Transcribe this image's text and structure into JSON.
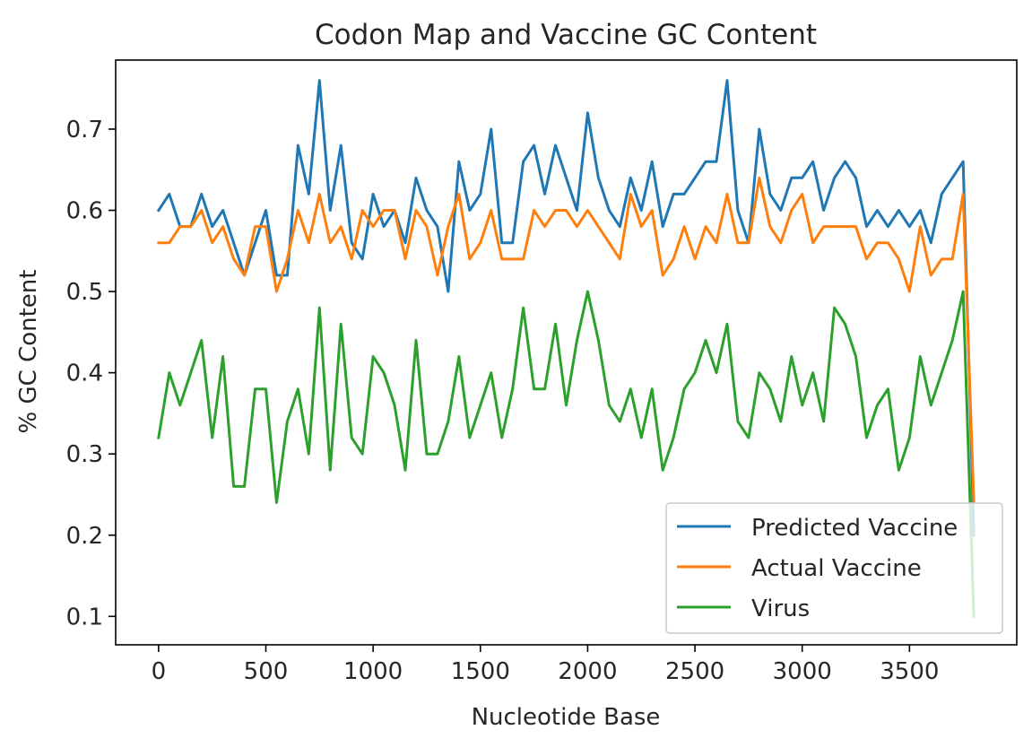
{
  "chart_data": {
    "type": "line",
    "title": "Codon Map and Vaccine GC Content",
    "xlabel": "Nucleotide Base",
    "ylabel": "% GC Content",
    "xlim": [
      -200,
      4000
    ],
    "ylim": [
      0.065,
      0.785
    ],
    "xticks": [
      0,
      500,
      1000,
      1500,
      2000,
      2500,
      3000,
      3500
    ],
    "xtick_labels": [
      "0",
      "500",
      "1000",
      "1500",
      "2000",
      "2500",
      "3000",
      "3500"
    ],
    "yticks": [
      0.1,
      0.2,
      0.3,
      0.4,
      0.5,
      0.6,
      0.7
    ],
    "ytick_labels": [
      "0.1",
      "0.2",
      "0.3",
      "0.4",
      "0.5",
      "0.6",
      "0.7"
    ],
    "grid": false,
    "legend_position": "lower-right",
    "x": [
      0,
      50,
      100,
      150,
      200,
      250,
      300,
      350,
      400,
      450,
      500,
      550,
      600,
      650,
      700,
      750,
      800,
      850,
      900,
      950,
      1000,
      1050,
      1100,
      1150,
      1200,
      1250,
      1300,
      1350,
      1400,
      1450,
      1500,
      1550,
      1600,
      1650,
      1700,
      1750,
      1800,
      1850,
      1900,
      1950,
      2000,
      2050,
      2100,
      2150,
      2200,
      2250,
      2300,
      2350,
      2400,
      2450,
      2500,
      2550,
      2600,
      2650,
      2700,
      2750,
      2800,
      2850,
      2900,
      2950,
      3000,
      3050,
      3100,
      3150,
      3200,
      3250,
      3300,
      3350,
      3400,
      3450,
      3500,
      3550,
      3600,
      3650,
      3700,
      3750,
      3800
    ],
    "series": [
      {
        "name": "Predicted Vaccine",
        "color": "#1f77b4",
        "values": [
          0.6,
          0.62,
          0.58,
          0.58,
          0.62,
          0.58,
          0.6,
          0.56,
          0.52,
          0.56,
          0.6,
          0.52,
          0.52,
          0.68,
          0.62,
          0.76,
          0.6,
          0.68,
          0.56,
          0.54,
          0.62,
          0.58,
          0.6,
          0.56,
          0.64,
          0.6,
          0.58,
          0.5,
          0.66,
          0.6,
          0.62,
          0.7,
          0.56,
          0.56,
          0.66,
          0.68,
          0.62,
          0.68,
          0.64,
          0.6,
          0.72,
          0.64,
          0.6,
          0.58,
          0.64,
          0.6,
          0.66,
          0.58,
          0.62,
          0.62,
          0.64,
          0.66,
          0.66,
          0.76,
          0.6,
          0.56,
          0.7,
          0.62,
          0.6,
          0.64,
          0.64,
          0.66,
          0.6,
          0.64,
          0.66,
          0.64,
          0.58,
          0.6,
          0.58,
          0.6,
          0.58,
          0.6,
          0.56,
          0.62,
          0.64,
          0.66,
          0.2
        ]
      },
      {
        "name": "Actual Vaccine",
        "color": "#ff7f0e",
        "values": [
          0.56,
          0.56,
          0.58,
          0.58,
          0.6,
          0.56,
          0.58,
          0.54,
          0.52,
          0.58,
          0.58,
          0.5,
          0.54,
          0.6,
          0.56,
          0.62,
          0.56,
          0.58,
          0.54,
          0.6,
          0.58,
          0.6,
          0.6,
          0.54,
          0.6,
          0.58,
          0.52,
          0.58,
          0.62,
          0.54,
          0.56,
          0.6,
          0.54,
          0.54,
          0.54,
          0.6,
          0.58,
          0.6,
          0.6,
          0.58,
          0.6,
          0.58,
          0.56,
          0.54,
          0.62,
          0.58,
          0.6,
          0.52,
          0.54,
          0.58,
          0.54,
          0.58,
          0.56,
          0.62,
          0.56,
          0.56,
          0.64,
          0.58,
          0.56,
          0.6,
          0.62,
          0.56,
          0.58,
          0.58,
          0.58,
          0.58,
          0.54,
          0.56,
          0.56,
          0.54,
          0.5,
          0.58,
          0.52,
          0.54,
          0.54,
          0.62,
          0.24
        ]
      },
      {
        "name": "Virus",
        "color": "#2ca02c",
        "values": [
          0.32,
          0.4,
          0.36,
          0.4,
          0.44,
          0.32,
          0.42,
          0.26,
          0.26,
          0.38,
          0.38,
          0.24,
          0.34,
          0.38,
          0.3,
          0.48,
          0.28,
          0.46,
          0.32,
          0.3,
          0.42,
          0.4,
          0.36,
          0.28,
          0.44,
          0.3,
          0.3,
          0.34,
          0.42,
          0.32,
          0.36,
          0.4,
          0.32,
          0.38,
          0.48,
          0.38,
          0.38,
          0.46,
          0.36,
          0.44,
          0.5,
          0.44,
          0.36,
          0.34,
          0.38,
          0.32,
          0.38,
          0.28,
          0.32,
          0.38,
          0.4,
          0.44,
          0.4,
          0.46,
          0.34,
          0.32,
          0.4,
          0.38,
          0.34,
          0.42,
          0.36,
          0.4,
          0.34,
          0.48,
          0.46,
          0.42,
          0.32,
          0.36,
          0.38,
          0.28,
          0.32,
          0.42,
          0.36,
          0.4,
          0.44,
          0.5,
          0.1
        ]
      }
    ]
  }
}
